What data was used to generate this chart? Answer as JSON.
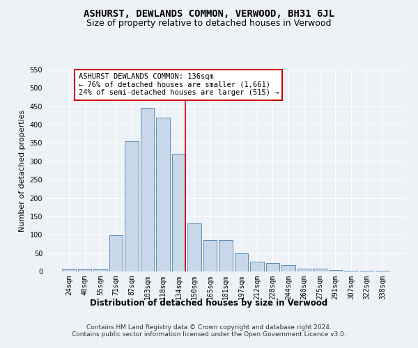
{
  "title": "ASHURST, DEWLANDS COMMON, VERWOOD, BH31 6JL",
  "subtitle": "Size of property relative to detached houses in Verwood",
  "xlabel": "Distribution of detached houses by size in Verwood",
  "ylabel": "Number of detached properties",
  "categories": [
    "24sqm",
    "40sqm",
    "55sqm",
    "71sqm",
    "87sqm",
    "103sqm",
    "118sqm",
    "134sqm",
    "150sqm",
    "165sqm",
    "181sqm",
    "197sqm",
    "212sqm",
    "228sqm",
    "244sqm",
    "260sqm",
    "275sqm",
    "291sqm",
    "307sqm",
    "322sqm",
    "338sqm"
  ],
  "values": [
    5,
    5,
    5,
    98,
    355,
    445,
    420,
    320,
    130,
    85,
    85,
    50,
    27,
    22,
    18,
    8,
    8,
    4,
    2,
    1,
    2
  ],
  "bar_color": "#c8d8e8",
  "bar_edge_color": "#5b8db8",
  "highlight_index": 7,
  "highlight_line_color": "#cc0000",
  "ylim": [
    0,
    550
  ],
  "yticks": [
    0,
    50,
    100,
    150,
    200,
    250,
    300,
    350,
    400,
    450,
    500,
    550
  ],
  "annotation_text": "ASHURST DEWLANDS COMMON: 136sqm\n← 76% of detached houses are smaller (1,661)\n24% of semi-detached houses are larger (515) →",
  "annotation_box_color": "#ffffff",
  "annotation_box_edge": "#cc0000",
  "background_color": "#eef2f7",
  "grid_color": "#ffffff",
  "footer_text": "Contains HM Land Registry data © Crown copyright and database right 2024.\nContains public sector information licensed under the Open Government Licence v3.0.",
  "title_fontsize": 10,
  "subtitle_fontsize": 9,
  "xlabel_fontsize": 8.5,
  "ylabel_fontsize": 8,
  "tick_fontsize": 7,
  "annotation_fontsize": 7.5,
  "footer_fontsize": 6.5
}
